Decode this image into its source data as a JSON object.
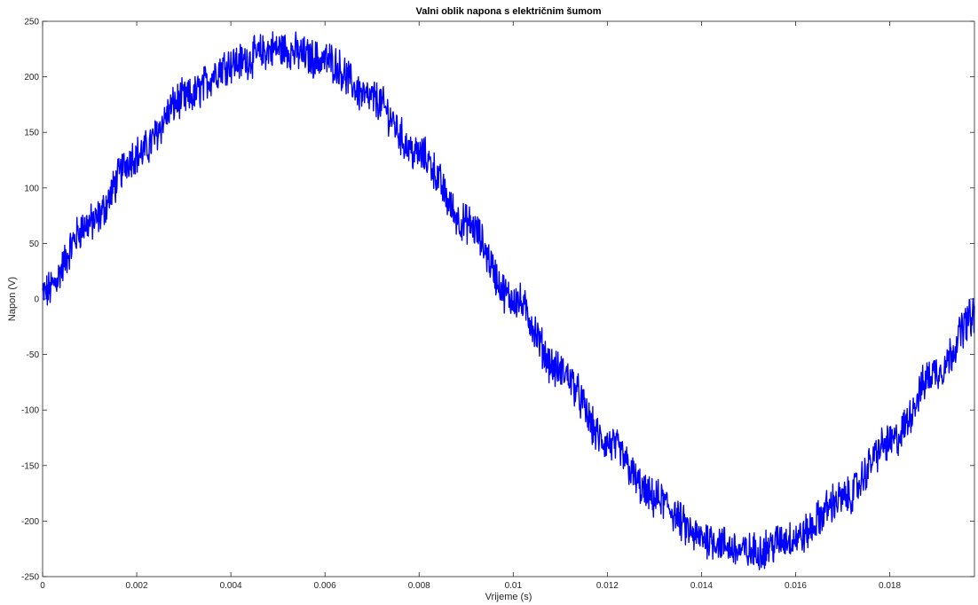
{
  "chart_data": {
    "type": "line",
    "title": "Valni oblik napona s električnim šumom",
    "xlabel": "Vrijeme (s)",
    "ylabel": "Napon (V)",
    "xlim": [
      0,
      0.0198
    ],
    "ylim": [
      -250,
      250
    ],
    "grid": false,
    "xticks": [
      0,
      0.002,
      0.004,
      0.006,
      0.008,
      0.01,
      0.012,
      0.014,
      0.016,
      0.018
    ],
    "xtick_labels": [
      "0",
      "0.002",
      "0.004",
      "0.006",
      "0.008",
      "0.01",
      "0.012",
      "0.014",
      "0.016",
      "0.018"
    ],
    "yticks": [
      -250,
      -200,
      -150,
      -100,
      -50,
      0,
      50,
      100,
      150,
      200,
      250
    ],
    "ytick_labels": [
      "-250",
      "-200",
      "-150",
      "-100",
      "-50",
      "0",
      "50",
      "100",
      "150",
      "200",
      "250"
    ],
    "series": [
      {
        "color": "#0000ff",
        "description": "sinusoid, amplitude about 225 V, frequency 50 Hz, with random noise of roughly ±15 V",
        "x": [
          0,
          0.001,
          0.002,
          0.003,
          0.004,
          0.005,
          0.006,
          0.007,
          0.008,
          0.009,
          0.01,
          0.011,
          0.012,
          0.013,
          0.014,
          0.015,
          0.016,
          0.017,
          0.018,
          0.019,
          0.0198
        ],
        "y": [
          5,
          68,
          130,
          180,
          212,
          225,
          215,
          180,
          130,
          68,
          0,
          -65,
          -130,
          -180,
          -215,
          -228,
          -215,
          -180,
          -130,
          -65,
          -15
        ]
      }
    ]
  }
}
